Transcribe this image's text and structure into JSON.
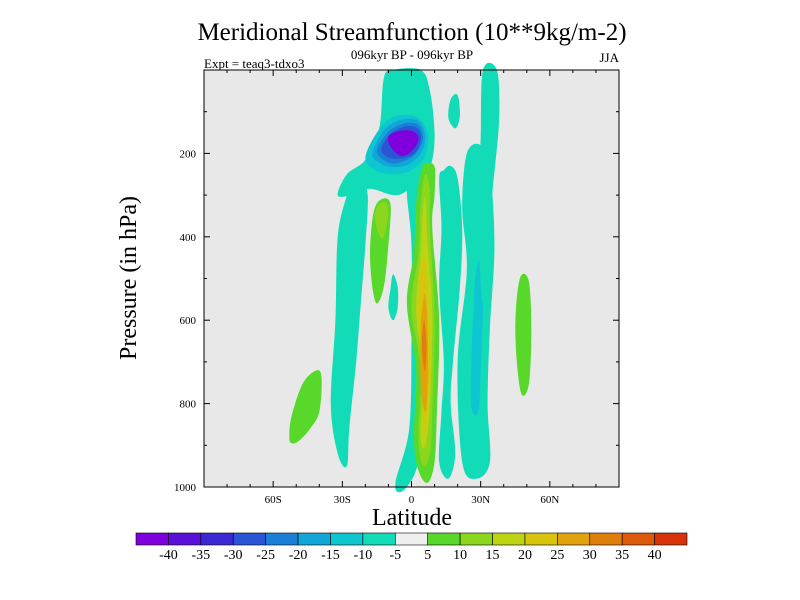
{
  "chart_data": {
    "type": "heatmap",
    "title": "Meridional Streamfunction (10**9kg/m-2)",
    "subtitle": "096kyr BP - 096kyr BP",
    "left_label": "Expt = teaq3-tdxo3",
    "right_label": "JJA",
    "xlabel": "Latitude",
    "ylabel": "Pressure (in hPa)",
    "xlim": [
      -90,
      90
    ],
    "ylim": [
      1000,
      0
    ],
    "x_ticks": [
      -60,
      -30,
      0,
      30,
      60
    ],
    "x_tick_labels": [
      "60S",
      "30S",
      "0",
      "30N",
      "60N"
    ],
    "y_ticks": [
      200,
      400,
      600,
      800,
      1000
    ],
    "y_tick_labels": [
      "200",
      "400",
      "600",
      "800",
      "1000"
    ],
    "background_color": "#e8e8e8",
    "colorbar": {
      "colors": [
        "#7f00dc",
        "#5a10d8",
        "#3c28d2",
        "#2a55d4",
        "#1a7fd6",
        "#10a6d8",
        "#0ec6d0",
        "#12dcb8",
        "#efefef",
        "#58d82a",
        "#8cd61e",
        "#bcd414",
        "#d8c40c",
        "#e2a20c",
        "#e07e0c",
        "#dc5a0a",
        "#d8320a"
      ],
      "levels": [
        -40,
        -35,
        -30,
        -25,
        -20,
        -15,
        -10,
        -5,
        5,
        10,
        15,
        20,
        25,
        30,
        35,
        40
      ],
      "labels": [
        "-40",
        "-35",
        "-30",
        "-25",
        "-20",
        "-15",
        "-10",
        "-5",
        "5",
        "10",
        "15",
        "20",
        "25",
        "30",
        "35",
        "40"
      ]
    },
    "contours": [
      {
        "name": "nh-polar-cell-left",
        "level": -5,
        "points": [
          [
            -32,
            920
          ],
          [
            -35,
            800
          ],
          [
            -33,
            600
          ],
          [
            -32,
            400
          ],
          [
            -28,
            300
          ],
          [
            -26,
            270
          ],
          [
            -22,
            270
          ],
          [
            -19,
            300
          ],
          [
            -20,
            420
          ],
          [
            -22,
            560
          ],
          [
            -24,
            700
          ],
          [
            -27,
            860
          ],
          [
            -28,
            950
          ]
        ]
      },
      {
        "name": "upper-cyan-sheet",
        "level": -5,
        "points": [
          [
            -32,
            300
          ],
          [
            -28,
            250
          ],
          [
            -20,
            215
          ],
          [
            -14,
            140
          ],
          [
            -12,
            20
          ],
          [
            -8,
            0
          ],
          [
            4,
            0
          ],
          [
            8,
            50
          ],
          [
            10,
            150
          ],
          [
            9,
            215
          ],
          [
            6,
            250
          ],
          [
            -2,
            290
          ],
          [
            -8,
            300
          ],
          [
            -18,
            285
          ],
          [
            -26,
            300
          ]
        ]
      },
      {
        "name": "upper-cell-10",
        "level": -10,
        "points": [
          [
            -20,
            210
          ],
          [
            -15,
            150
          ],
          [
            -8,
            112
          ],
          [
            2,
            112
          ],
          [
            7,
            150
          ],
          [
            6,
            205
          ],
          [
            0,
            240
          ],
          [
            -8,
            250
          ],
          [
            -16,
            240
          ]
        ]
      },
      {
        "name": "upper-cell-15",
        "level": -15,
        "points": [
          [
            -17,
            200
          ],
          [
            -12,
            145
          ],
          [
            -5,
            120
          ],
          [
            3,
            122
          ],
          [
            6,
            160
          ],
          [
            4,
            200
          ],
          [
            -2,
            228
          ],
          [
            -9,
            232
          ],
          [
            -14,
            222
          ]
        ]
      },
      {
        "name": "upper-cell-20",
        "level": -20,
        "points": [
          [
            -15,
            195
          ],
          [
            -10,
            148
          ],
          [
            -3,
            128
          ],
          [
            3,
            132
          ],
          [
            5,
            165
          ],
          [
            2,
            200
          ],
          [
            -4,
            220
          ],
          [
            -10,
            222
          ]
        ]
      },
      {
        "name": "upper-cell-25",
        "level": -25,
        "points": [
          [
            -13,
            190
          ],
          [
            -9,
            152
          ],
          [
            -2,
            135
          ],
          [
            3,
            142
          ],
          [
            4,
            170
          ],
          [
            1,
            202
          ],
          [
            -5,
            212
          ],
          [
            -10,
            210
          ]
        ]
      },
      {
        "name": "upper-cell-40",
        "level": -40,
        "points": [
          [
            -10,
            160
          ],
          [
            -5,
            146
          ],
          [
            1,
            148
          ],
          [
            3,
            170
          ],
          [
            -1,
            200
          ],
          [
            -5,
            205
          ],
          [
            -9,
            185
          ]
        ]
      },
      {
        "name": "equatorial-cyan-left",
        "level": -5,
        "points": [
          [
            -2,
            290
          ],
          [
            0,
            420
          ],
          [
            0,
            640
          ],
          [
            -1,
            860
          ],
          [
            -7,
            990
          ],
          [
            -4,
            1010
          ],
          [
            2,
            960
          ],
          [
            5,
            860
          ],
          [
            4,
            680
          ],
          [
            3,
            480
          ],
          [
            6,
            300
          ],
          [
            5,
            260
          ],
          [
            1,
            270
          ]
        ]
      },
      {
        "name": "equatorial-positive-5",
        "level": 5,
        "points": [
          [
            6,
            225
          ],
          [
            10,
            232
          ],
          [
            10,
            300
          ],
          [
            9,
            380
          ],
          [
            12,
            600
          ],
          [
            11,
            820
          ],
          [
            10,
            940
          ],
          [
            7,
            990
          ],
          [
            3,
            960
          ],
          [
            1,
            880
          ],
          [
            2,
            720
          ],
          [
            -2,
            560
          ],
          [
            1,
            440
          ],
          [
            2,
            320
          ],
          [
            4,
            245
          ]
        ]
      },
      {
        "name": "equatorial-positive-10",
        "level": 10,
        "points": [
          [
            6,
            250
          ],
          [
            8,
            290
          ],
          [
            8,
            380
          ],
          [
            10,
            600
          ],
          [
            9,
            820
          ],
          [
            8,
            920
          ],
          [
            5,
            950
          ],
          [
            3,
            880
          ],
          [
            4,
            720
          ],
          [
            0,
            570
          ],
          [
            3,
            440
          ],
          [
            4,
            320
          ]
        ]
      },
      {
        "name": "equatorial-positive-15",
        "level": 15,
        "points": [
          [
            6,
            310
          ],
          [
            7,
            420
          ],
          [
            9,
            580
          ],
          [
            8,
            800
          ],
          [
            6,
            900
          ],
          [
            4,
            880
          ],
          [
            5,
            720
          ],
          [
            2,
            580
          ],
          [
            4,
            440
          ],
          [
            5,
            330
          ]
        ]
      },
      {
        "name": "equatorial-positive-20",
        "level": 20,
        "points": [
          [
            6,
            460
          ],
          [
            7,
            570
          ],
          [
            8,
            700
          ],
          [
            6,
            860
          ],
          [
            5,
            870
          ],
          [
            5,
            700
          ],
          [
            3,
            580
          ],
          [
            4,
            480
          ]
        ]
      },
      {
        "name": "equatorial-positive-25",
        "level": 25,
        "points": [
          [
            6,
            540
          ],
          [
            7,
            620
          ],
          [
            7,
            760
          ],
          [
            6,
            820
          ],
          [
            4,
            760
          ],
          [
            4,
            620
          ],
          [
            5,
            560
          ]
        ]
      },
      {
        "name": "equatorial-positive-30",
        "level": 30,
        "points": [
          [
            5.5,
            600
          ],
          [
            6.5,
            660
          ],
          [
            6,
            720
          ],
          [
            5,
            700
          ],
          [
            4.5,
            650
          ]
        ]
      },
      {
        "name": "mid-left-green-5",
        "level": 5,
        "points": [
          [
            -17,
            360
          ],
          [
            -15,
            320
          ],
          [
            -11,
            308
          ],
          [
            -9,
            330
          ],
          [
            -10,
            420
          ],
          [
            -12,
            520
          ],
          [
            -15,
            560
          ],
          [
            -17,
            520
          ],
          [
            -18,
            440
          ]
        ]
      },
      {
        "name": "mid-left-yellow-10",
        "level": 10,
        "points": [
          [
            -16,
            350
          ],
          [
            -14,
            322
          ],
          [
            -11,
            318
          ],
          [
            -10,
            345
          ],
          [
            -12,
            400
          ],
          [
            -14,
            395
          ]
        ]
      },
      {
        "name": "small-cyan-blob",
        "level": -5,
        "points": [
          [
            -8,
            490
          ],
          [
            -6,
            520
          ],
          [
            -6,
            570
          ],
          [
            -8,
            600
          ],
          [
            -10,
            570
          ],
          [
            -9,
            520
          ]
        ]
      },
      {
        "name": "sh-cyan-column-1",
        "level": -5,
        "points": [
          [
            14,
            240
          ],
          [
            17,
            230
          ],
          [
            20,
            260
          ],
          [
            22,
            380
          ],
          [
            21,
            520
          ],
          [
            18,
            700
          ],
          [
            17,
            800
          ],
          [
            19,
            920
          ],
          [
            16,
            980
          ],
          [
            12,
            940
          ],
          [
            13,
            820
          ],
          [
            14,
            700
          ],
          [
            12,
            520
          ],
          [
            13,
            380
          ],
          [
            12,
            260
          ]
        ]
      },
      {
        "name": "sh-cyan-column-2",
        "level": -5,
        "points": [
          [
            24,
            200
          ],
          [
            30,
            180
          ],
          [
            34,
            240
          ],
          [
            36,
            420
          ],
          [
            34,
            620
          ],
          [
            33,
            800
          ],
          [
            34,
            940
          ],
          [
            28,
            980
          ],
          [
            22,
            940
          ],
          [
            20,
            700
          ],
          [
            24,
            480
          ],
          [
            22,
            330
          ]
        ]
      },
      {
        "name": "sh-blue-core",
        "level": -10,
        "points": [
          [
            28,
            480
          ],
          [
            30,
            460
          ],
          [
            31,
            560
          ],
          [
            30,
            720
          ],
          [
            29,
            820
          ],
          [
            26,
            810
          ],
          [
            26,
            700
          ],
          [
            27,
            560
          ]
        ]
      },
      {
        "name": "top-cyan-column-a",
        "level": -5,
        "points": [
          [
            17,
            70
          ],
          [
            20,
            60
          ],
          [
            21,
            110
          ],
          [
            19,
            140
          ],
          [
            16,
            115
          ]
        ]
      },
      {
        "name": "top-cyan-column-b",
        "level": -5,
        "points": [
          [
            31,
            0
          ],
          [
            37,
            0
          ],
          [
            38,
            120
          ],
          [
            35,
            300
          ],
          [
            33,
            460
          ],
          [
            31,
            560
          ],
          [
            29,
            380
          ],
          [
            30,
            160
          ]
        ]
      },
      {
        "name": "top-cyan-column-c",
        "level": -5,
        "points": [
          [
            32,
            40
          ],
          [
            36,
            30
          ],
          [
            38,
            100
          ],
          [
            35,
            110
          ]
        ]
      },
      {
        "name": "nh-green-right",
        "level": 5,
        "points": [
          [
            46,
            530
          ],
          [
            48,
            490
          ],
          [
            51,
            510
          ],
          [
            52,
            620
          ],
          [
            51,
            750
          ],
          [
            48,
            780
          ],
          [
            46,
            720
          ],
          [
            45,
            620
          ]
        ]
      },
      {
        "name": "nh-green-left",
        "level": 5,
        "points": [
          [
            -53,
            880
          ],
          [
            -52,
            830
          ],
          [
            -47,
            750
          ],
          [
            -41,
            720
          ],
          [
            -39,
            740
          ],
          [
            -40,
            820
          ],
          [
            -44,
            860
          ],
          [
            -49,
            890
          ],
          [
            -52,
            895
          ]
        ]
      }
    ]
  }
}
